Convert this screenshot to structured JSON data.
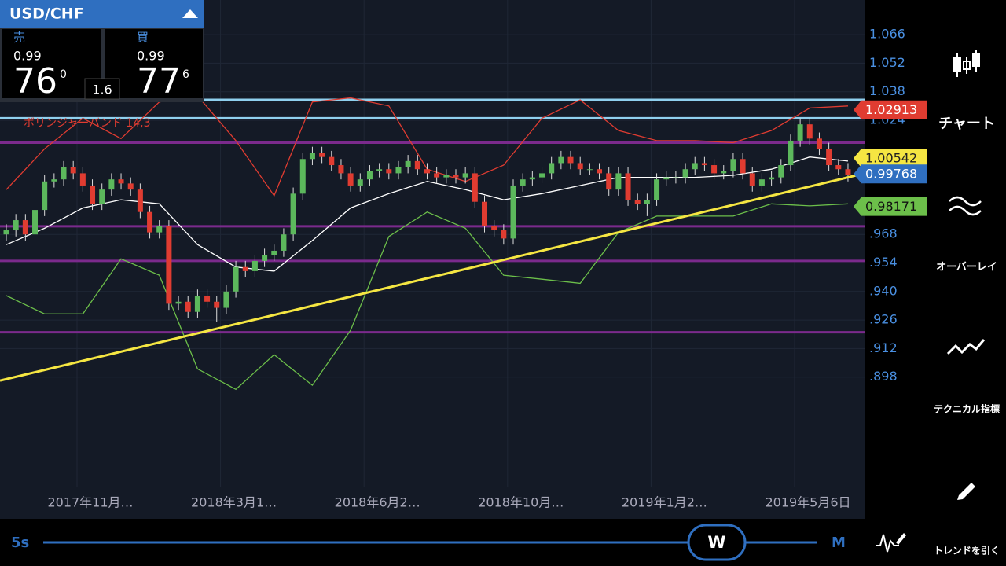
{
  "header": {
    "symbol": "USD/CHF",
    "sell": {
      "label": "売",
      "small": "0.99",
      "big": "76",
      "sup": "0"
    },
    "spread": "1.6",
    "buy": {
      "label": "買",
      "small": "0.99",
      "big": "77",
      "sup": "6"
    }
  },
  "chart": {
    "type": "candlestick",
    "indicator_label": "ボリンジャーバンド 14,3",
    "ylim": [
      0.8439,
      1.083
    ],
    "yticks": [
      1.066,
      1.052,
      1.038,
      1.024,
      {
        "value": 0.968,
        "label": ".968"
      },
      {
        "value": 0.954,
        "label": ".954"
      },
      {
        "value": 0.94,
        "label": ".940"
      },
      {
        "value": 0.926,
        "label": ".926"
      },
      {
        "value": 0.912,
        "label": ".912"
      },
      {
        "value": 0.898,
        "label": ".898"
      }
    ],
    "x_labels": [
      "2017年11月…",
      "2018年3月1…",
      "2018年6月2…",
      "2018年10月…",
      "2019年1月2…",
      "2019年5月6日"
    ],
    "up_color": "#5cb85c",
    "down_color": "#e03c31",
    "candles": [
      [
        0.968,
        0.973,
        0.965,
        0.97
      ],
      [
        0.97,
        0.978,
        0.967,
        0.975
      ],
      [
        0.975,
        0.978,
        0.965,
        0.968
      ],
      [
        0.968,
        0.983,
        0.965,
        0.98
      ],
      [
        0.98,
        0.997,
        0.977,
        0.994
      ],
      [
        0.994,
        0.998,
        0.991,
        0.995
      ],
      [
        0.995,
        1.004,
        0.992,
        1.001
      ],
      [
        1.001,
        1.004,
        0.995,
        0.998
      ],
      [
        0.998,
        1.001,
        0.989,
        0.992
      ],
      [
        0.992,
        0.995,
        0.98,
        0.983
      ],
      [
        0.983,
        0.993,
        0.98,
        0.99
      ],
      [
        0.99,
        0.998,
        0.987,
        0.995
      ],
      [
        0.995,
        0.998,
        0.99,
        0.993
      ],
      [
        0.993,
        0.996,
        0.987,
        0.99
      ],
      [
        0.99,
        0.993,
        0.976,
        0.979
      ],
      [
        0.979,
        0.982,
        0.966,
        0.969
      ],
      [
        0.969,
        0.975,
        0.966,
        0.972
      ],
      [
        0.972,
        0.975,
        0.931,
        0.934
      ],
      [
        0.934,
        0.938,
        0.931,
        0.935
      ],
      [
        0.935,
        0.938,
        0.927,
        0.93
      ],
      [
        0.93,
        0.941,
        0.927,
        0.938
      ],
      [
        0.938,
        0.941,
        0.932,
        0.935
      ],
      [
        0.935,
        0.938,
        0.925,
        0.932
      ],
      [
        0.932,
        0.943,
        0.929,
        0.94
      ],
      [
        0.94,
        0.955,
        0.937,
        0.952
      ],
      [
        0.952,
        0.955,
        0.947,
        0.95
      ],
      [
        0.95,
        0.958,
        0.947,
        0.955
      ],
      [
        0.955,
        0.961,
        0.952,
        0.958
      ],
      [
        0.958,
        0.963,
        0.955,
        0.96
      ],
      [
        0.96,
        0.971,
        0.957,
        0.968
      ],
      [
        0.968,
        0.991,
        0.965,
        0.988
      ],
      [
        0.988,
        1.008,
        0.985,
        1.005
      ],
      [
        1.005,
        1.011,
        1.002,
        1.008
      ],
      [
        1.008,
        1.011,
        1.003,
        1.006
      ],
      [
        1.006,
        1.009,
        0.999,
        1.002
      ],
      [
        1.002,
        1.005,
        0.995,
        0.998
      ],
      [
        0.998,
        1.001,
        0.989,
        0.992
      ],
      [
        0.992,
        0.998,
        0.989,
        0.995
      ],
      [
        0.995,
        1.002,
        0.992,
        0.999
      ],
      [
        0.999,
        1.003,
        0.996,
        1.0
      ],
      [
        1.0,
        1.003,
        0.995,
        0.998
      ],
      [
        0.998,
        1.004,
        0.995,
        1.001
      ],
      [
        1.001,
        1.007,
        0.998,
        1.004
      ],
      [
        1.004,
        1.007,
        0.997,
        1.0
      ],
      [
        1.0,
        1.003,
        0.995,
        0.998
      ],
      [
        0.998,
        1.001,
        0.993,
        0.996
      ],
      [
        0.996,
        1.0,
        0.993,
        0.997
      ],
      [
        0.997,
        1.0,
        0.993,
        0.996
      ],
      [
        0.996,
        1.001,
        0.993,
        0.998
      ],
      [
        0.998,
        1.001,
        0.981,
        0.984
      ],
      [
        0.984,
        0.987,
        0.969,
        0.972
      ],
      [
        0.972,
        0.975,
        0.967,
        0.97
      ],
      [
        0.97,
        0.973,
        0.963,
        0.966
      ],
      [
        0.966,
        0.995,
        0.963,
        0.992
      ],
      [
        0.992,
        0.998,
        0.989,
        0.995
      ],
      [
        0.995,
        0.999,
        0.992,
        0.996
      ],
      [
        0.996,
        1.001,
        0.993,
        0.998
      ],
      [
        0.998,
        1.006,
        0.995,
        1.003
      ],
      [
        1.003,
        1.009,
        1.0,
        1.006
      ],
      [
        1.006,
        1.009,
        1.0,
        1.003
      ],
      [
        1.003,
        1.006,
        0.997,
        1.0
      ],
      [
        1.0,
        1.003,
        0.997,
        1.0
      ],
      [
        1.0,
        1.003,
        0.995,
        0.998
      ],
      [
        0.998,
        1.001,
        0.987,
        0.99
      ],
      [
        0.99,
        1.001,
        0.987,
        0.998
      ],
      [
        0.998,
        1.001,
        0.982,
        0.985
      ],
      [
        0.985,
        0.988,
        0.98,
        0.983
      ],
      [
        0.983,
        0.988,
        0.977,
        0.985
      ],
      [
        0.985,
        0.998,
        0.982,
        0.995
      ],
      [
        0.995,
        0.999,
        0.992,
        0.996
      ],
      [
        0.996,
        0.999,
        0.993,
        0.996
      ],
      [
        0.996,
        1.003,
        0.993,
        1.0
      ],
      [
        1.0,
        1.006,
        0.997,
        1.003
      ],
      [
        1.003,
        1.006,
        0.999,
        1.002
      ],
      [
        1.002,
        1.005,
        0.995,
        0.998
      ],
      [
        0.998,
        1.002,
        0.995,
        0.999
      ],
      [
        0.999,
        1.008,
        0.996,
        1.005
      ],
      [
        1.005,
        1.008,
        0.995,
        0.998
      ],
      [
        0.998,
        1.001,
        0.989,
        0.992
      ],
      [
        0.992,
        0.998,
        0.989,
        0.995
      ],
      [
        0.995,
        0.999,
        0.992,
        0.996
      ],
      [
        0.996,
        1.005,
        0.993,
        1.002
      ],
      [
        1.002,
        1.017,
        0.999,
        1.014
      ],
      [
        1.014,
        1.025,
        1.011,
        1.022
      ],
      [
        1.022,
        1.025,
        1.012,
        1.015
      ],
      [
        1.015,
        1.018,
        1.007,
        1.01
      ],
      [
        1.01,
        1.013,
        0.999,
        1.002
      ],
      [
        1.002,
        1.005,
        0.997,
        1.0
      ],
      [
        1.0,
        1.003,
        0.994,
        0.997
      ]
    ],
    "bands": {
      "x": [
        0,
        4,
        8,
        12,
        16,
        20,
        24,
        28,
        32,
        36,
        40,
        44,
        48,
        52,
        56,
        60,
        64,
        68,
        72,
        76,
        80,
        84,
        88
      ],
      "upper": {
        "color": "#e03c31",
        "values": [
          0.99,
          1.01,
          1.025,
          1.015,
          1.033,
          1.036,
          1.014,
          0.987,
          1.033,
          1.035,
          1.031,
          1.0,
          0.994,
          1.002,
          1.025,
          1.034,
          1.019,
          1.014,
          1.014,
          1.013,
          1.019,
          1.03,
          1.031
        ]
      },
      "middle": {
        "color": "#ffffff",
        "values": [
          0.963,
          0.971,
          0.981,
          0.985,
          0.983,
          0.963,
          0.952,
          0.95,
          0.965,
          0.981,
          0.988,
          0.994,
          0.99,
          0.985,
          0.988,
          0.992,
          0.996,
          0.996,
          0.996,
          0.997,
          1.0,
          1.006,
          1.004
        ]
      },
      "lower": {
        "color": "#6cbf4a",
        "values": [
          0.938,
          0.929,
          0.929,
          0.956,
          0.948,
          0.902,
          0.892,
          0.909,
          0.894,
          0.921,
          0.967,
          0.979,
          0.971,
          0.948,
          0.946,
          0.944,
          0.969,
          0.977,
          0.977,
          0.977,
          0.983,
          0.982,
          0.983
        ]
      }
    },
    "trend": {
      "color": "#f5e642",
      "x": [
        0,
        88
      ],
      "values": [
        0.897,
        0.996
      ]
    },
    "levels": [
      {
        "value": 1.034,
        "color": "#8fd0ee"
      },
      {
        "value": 1.025,
        "color": "#8fd0ee"
      },
      {
        "value": 1.013,
        "color": "#7b2a8c"
      },
      {
        "value": 0.972,
        "color": "#7b2a8c"
      },
      {
        "value": 0.955,
        "color": "#7b2a8c"
      },
      {
        "value": 0.92,
        "color": "#7b2a8c"
      }
    ],
    "price_tags": [
      {
        "value": 1.02913,
        "color": "#e03c31",
        "text_color": "#ffffff"
      },
      {
        "value": 1.00542,
        "color": "#f5e642",
        "text_color": "#222222"
      },
      {
        "value": 0.99768,
        "color": "#2f6fc0",
        "text_color": "#ffffff"
      },
      {
        "value": 0.98171,
        "color": "#6cbf4a",
        "text_color": "#111111"
      }
    ]
  },
  "sidebar": [
    "チャート",
    "オーバーレイ",
    "テクニカル指標",
    "トレンドを引く"
  ],
  "timeframe": {
    "min": "5s",
    "current": "W",
    "max": "M"
  }
}
